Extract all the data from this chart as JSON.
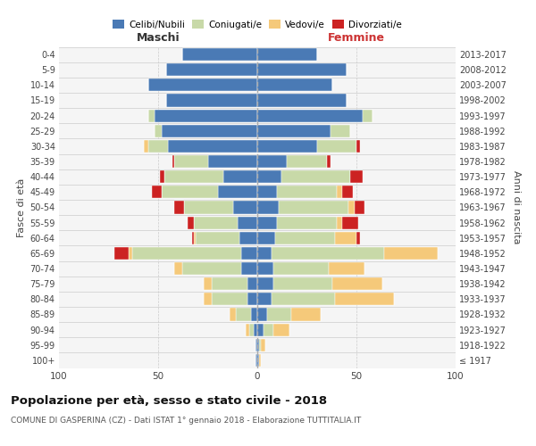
{
  "age_groups": [
    "100+",
    "95-99",
    "90-94",
    "85-89",
    "80-84",
    "75-79",
    "70-74",
    "65-69",
    "60-64",
    "55-59",
    "50-54",
    "45-49",
    "40-44",
    "35-39",
    "30-34",
    "25-29",
    "20-24",
    "15-19",
    "10-14",
    "5-9",
    "0-4"
  ],
  "birth_years": [
    "≤ 1917",
    "1918-1922",
    "1923-1927",
    "1928-1932",
    "1933-1937",
    "1938-1942",
    "1943-1947",
    "1948-1952",
    "1953-1957",
    "1958-1962",
    "1963-1967",
    "1968-1972",
    "1973-1977",
    "1978-1982",
    "1983-1987",
    "1988-1992",
    "1993-1997",
    "1998-2002",
    "2003-2007",
    "2008-2012",
    "2013-2017"
  ],
  "colors": {
    "celibi": "#4a7ab5",
    "coniugati": "#c8d9a8",
    "vedovi": "#f5c97a",
    "divorziati": "#cc2222"
  },
  "maschi_celibi": [
    1,
    1,
    2,
    3,
    5,
    5,
    8,
    8,
    9,
    10,
    12,
    20,
    17,
    25,
    45,
    48,
    52,
    46,
    55,
    46,
    38
  ],
  "maschi_coniugati": [
    0,
    0,
    2,
    8,
    18,
    18,
    30,
    55,
    22,
    22,
    25,
    28,
    30,
    17,
    10,
    4,
    3,
    0,
    0,
    0,
    0
  ],
  "maschi_vedovi": [
    0,
    0,
    2,
    3,
    4,
    4,
    4,
    2,
    1,
    0,
    0,
    0,
    0,
    0,
    2,
    0,
    0,
    0,
    0,
    0,
    0
  ],
  "maschi_divorziati": [
    0,
    0,
    0,
    0,
    0,
    0,
    0,
    7,
    1,
    3,
    5,
    5,
    2,
    1,
    0,
    0,
    0,
    0,
    0,
    0,
    0
  ],
  "femmine_celibi": [
    1,
    1,
    3,
    5,
    7,
    8,
    8,
    7,
    9,
    10,
    11,
    10,
    12,
    15,
    30,
    37,
    53,
    45,
    38,
    45,
    30
  ],
  "femmine_coniugati": [
    0,
    1,
    5,
    12,
    32,
    30,
    28,
    57,
    30,
    30,
    35,
    30,
    35,
    20,
    20,
    10,
    5,
    0,
    0,
    0,
    0
  ],
  "femmine_vedovi": [
    1,
    2,
    8,
    15,
    30,
    25,
    18,
    27,
    11,
    3,
    3,
    3,
    0,
    0,
    0,
    0,
    0,
    0,
    0,
    0,
    0
  ],
  "femmine_divorziati": [
    0,
    0,
    0,
    0,
    0,
    0,
    0,
    0,
    2,
    8,
    5,
    5,
    6,
    2,
    2,
    0,
    0,
    0,
    0,
    0,
    0
  ],
  "title": "Popolazione per età, sesso e stato civile - 2018",
  "subtitle": "COMUNE DI GASPERINA (CZ) - Dati ISTAT 1° gennaio 2018 - Elaborazione TUTTITALIA.IT",
  "xlabel_left": "Maschi",
  "xlabel_right": "Femmine",
  "ylabel_left": "Fasce di età",
  "ylabel_right": "Anni di nascita",
  "xlim": 100,
  "legend_labels": [
    "Celibi/Nubili",
    "Coniugati/e",
    "Vedovi/e",
    "Divorziati/e"
  ],
  "bg_color": "#f5f5f5"
}
